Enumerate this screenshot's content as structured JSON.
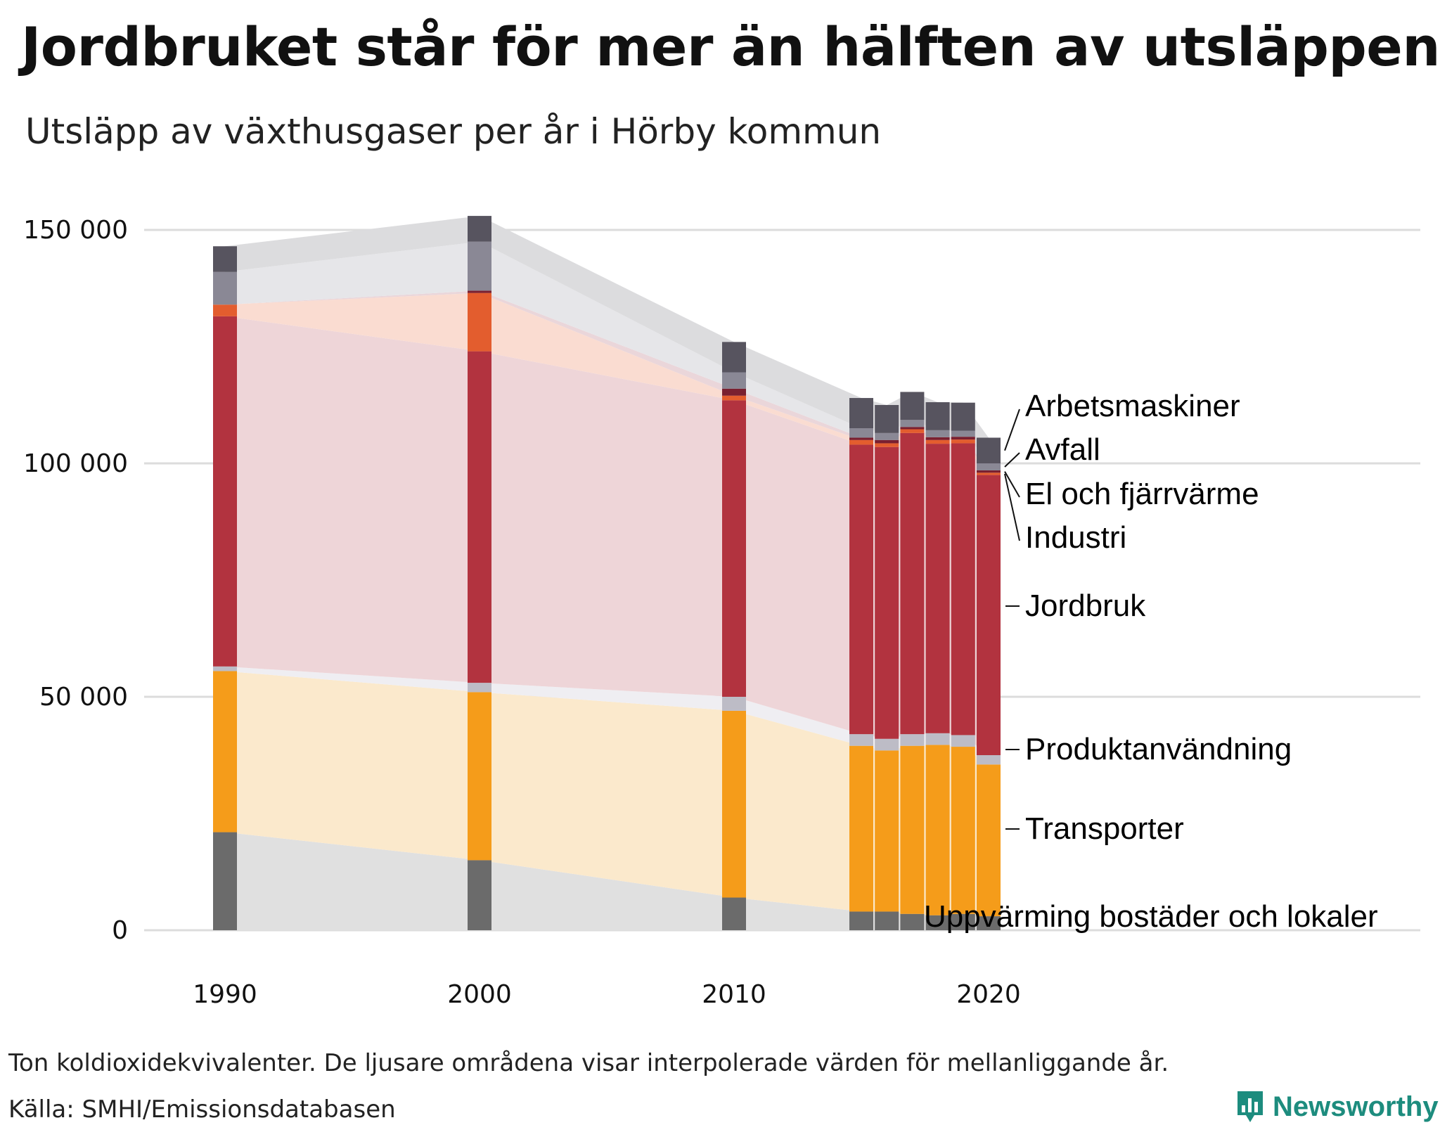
{
  "title": "Jordbruket står för mer än hälften av utsläppen",
  "subtitle": "Utsläpp av växthusgaser per år i Hörby kommun",
  "note": "Ton koldioxidekvivalenter. De ljusare områdena visar interpolerade värden för mellanliggande år.",
  "source": "Källa: SMHI/Emissionsdatabasen",
  "brand": "Newsworthy",
  "brand_color": "#1d8c7e",
  "chart_data": {
    "type": "bar",
    "stacked": true,
    "title": "Utsläpp av växthusgaser per år i Hörby kommun",
    "ylabel": "Ton koldioxidekvivalenter",
    "ylim": [
      0,
      155000
    ],
    "yticks": [
      0,
      50000,
      100000,
      150000
    ],
    "ytick_labels": [
      "0",
      "50 000",
      "100 000",
      "150 000"
    ],
    "xlim": [
      1988.5,
      2021.5
    ],
    "xticks": [
      1990,
      2000,
      2010,
      2020
    ],
    "xtick_labels": [
      "1990",
      "2000",
      "2010",
      "2020"
    ],
    "years": [
      1990,
      2000,
      2010,
      2015,
      2016,
      2017,
      2018,
      2019,
      2020
    ],
    "series": [
      {
        "name": "Uppvärming bostäder och lokaler",
        "color": "#6b6b6b",
        "area_color": "#e0e0e0",
        "values": [
          21000,
          15000,
          7000,
          4000,
          4000,
          3500,
          3200,
          3500,
          3000
        ]
      },
      {
        "name": "Transporter",
        "color": "#f59c1a",
        "area_color": "#fbe9cc",
        "values": [
          34500,
          36000,
          40000,
          35500,
          34500,
          36000,
          36500,
          35800,
          32500
        ]
      },
      {
        "name": "Produktanvändning",
        "color": "#bdbcc6",
        "area_color": "#efeef2",
        "values": [
          1000,
          2000,
          3000,
          2500,
          2500,
          2500,
          2500,
          2500,
          2000
        ]
      },
      {
        "name": "Jordbruk",
        "color": "#b2333f",
        "area_color": "#eed5d8",
        "values": [
          75000,
          71000,
          63500,
          62000,
          62500,
          64500,
          62000,
          62500,
          60000
        ]
      },
      {
        "name": "Industri",
        "color": "#e35d2e",
        "area_color": "#fadcd1",
        "values": [
          2500,
          12500,
          1000,
          1000,
          800,
          800,
          800,
          800,
          500
        ]
      },
      {
        "name": "El och fjärrvärme",
        "color": "#7a2030",
        "area_color": "#ead6da",
        "values": [
          0,
          500,
          1500,
          500,
          700,
          500,
          600,
          600,
          500
        ]
      },
      {
        "name": "Avfall",
        "color": "#8a8895",
        "area_color": "#e6e6e9",
        "values": [
          7000,
          10500,
          3500,
          2000,
          1500,
          1500,
          1500,
          1300,
          1500
        ]
      },
      {
        "name": "Arbetsmaskiner",
        "color": "#57545f",
        "area_color": "#dcdcde",
        "values": [
          5500,
          5500,
          6500,
          6500,
          6000,
          6000,
          6000,
          6000,
          5500
        ]
      }
    ],
    "legend_labels": [
      "Arbetsmaskiner",
      "Avfall",
      "El och fjärrvärme",
      "Industri",
      "Jordbruk",
      "Produktanvändning",
      "Transporter",
      "Uppvärming bostäder och lokaler"
    ]
  }
}
